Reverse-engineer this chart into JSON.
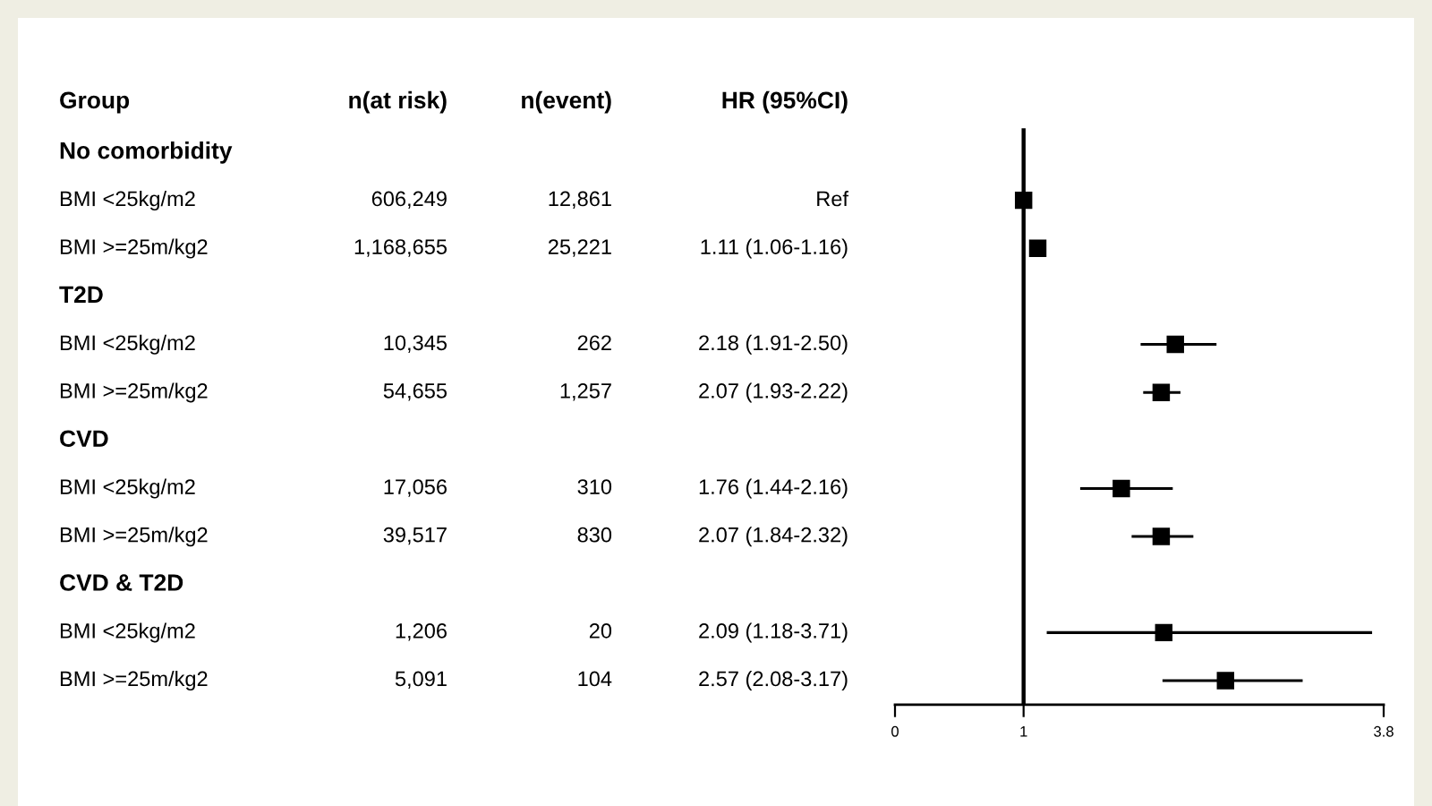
{
  "chart_data": [
    {
      "type": "other",
      "categories": [
        "Group",
        "n(at risk)",
        "n(event)",
        "HR (95%CI)"
      ],
      "y_categories": [
        "No comorbidity",
        "BMI <25kg/m2",
        "BMI >=25m/kg2",
        "T2D",
        "BMI <25kg/m2",
        "BMI >=25m/kg2",
        "CVD",
        "BMI <25kg/m2",
        "BMI >=25m/kg2",
        "CVD & T2D",
        "BMI <25kg/m2",
        "BMI >=25m/kg2"
      ],
      "cell_labels": [
        [
          null,
          null,
          null
        ],
        [
          "606,249",
          "12,861",
          "Ref"
        ],
        [
          "1,168,655",
          "25,221",
          "1.11 (1.06-1.16)"
        ],
        [
          null,
          null,
          null
        ],
        [
          "10,345",
          "262",
          "2.18 (1.91-2.50)"
        ],
        [
          "54,655",
          "1,257",
          "2.07 (1.93-2.22)"
        ],
        [
          null,
          null,
          null
        ],
        [
          "17,056",
          "310",
          "1.76 (1.44-2.16)"
        ],
        [
          "39,517",
          "830",
          "2.07 (1.84-2.32)"
        ],
        [
          null,
          null,
          null
        ],
        [
          "1,206",
          "20",
          "2.09 (1.18-3.71)"
        ],
        [
          "5,091",
          "104",
          "2.57 (2.08-3.17)"
        ]
      ]
    },
    {
      "type": "scatter",
      "orientation": "horizontal",
      "categories": [
        null,
        null,
        null,
        null,
        null,
        null,
        null,
        null,
        null,
        null,
        null,
        null
      ],
      "values": [
        null,
        1,
        1.11,
        null,
        2.18,
        2.07,
        null,
        1.76,
        2.07,
        null,
        2.09,
        2.57
      ],
      "errors": [
        null,
        null,
        [
          1.06,
          1.16
        ],
        null,
        [
          1.91,
          2.5
        ],
        [
          1.93,
          2.22
        ],
        null,
        [
          1.44,
          2.16
        ],
        [
          1.84,
          2.32
        ],
        null,
        [
          1.18,
          3.71
        ],
        [
          2.08,
          3.17
        ]
      ],
      "color": "#000000",
      "marker": "square",
      "xlim": [
        0,
        3.8
      ],
      "xticks": [
        0,
        1,
        3.8
      ],
      "ref_lines": [
        {
          "axis": "x",
          "value": 1,
          "color": "#000000"
        }
      ],
      "tick_labels": "x",
      "grid": false
    }
  ]
}
